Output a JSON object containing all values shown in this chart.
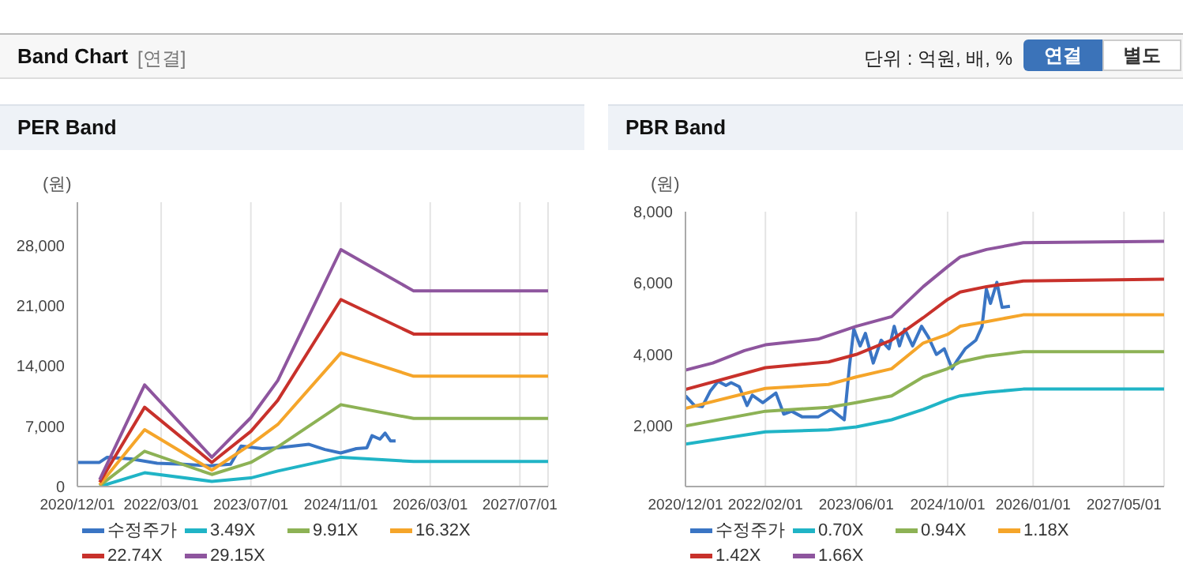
{
  "chart_data": [
    {
      "type": "line",
      "title": "PER Band",
      "ylabel": "(원)",
      "annotations": [
        "Band Chart",
        "[연결]",
        "단위 : 억원, 배, %",
        "연결",
        "별도"
      ],
      "xlim": [
        "2020-12-01",
        "2027-12-01"
      ],
      "xticks": [
        {
          "value": "2020-12-01",
          "label": "2020/12/01"
        },
        {
          "value": "2022-03-01",
          "label": "2022/03/01"
        },
        {
          "value": "2023-07-01",
          "label": "2023/07/01"
        },
        {
          "value": "2024-11-01",
          "label": "2024/11/01"
        },
        {
          "value": "2026-03-01",
          "label": "2026/03/01"
        },
        {
          "value": "2027-07-01",
          "label": "2027/07/01"
        }
      ],
      "ylim": [
        0,
        33000
      ],
      "yticks": [
        {
          "value": 0,
          "label": "0"
        },
        {
          "value": 7000,
          "label": "7,000"
        },
        {
          "value": 14000,
          "label": "14,000"
        },
        {
          "value": 21000,
          "label": "21,000"
        },
        {
          "value": 28000,
          "label": "28,000"
        }
      ],
      "grid": "x",
      "legend": "bottom",
      "marker": "none",
      "series": [
        {
          "name": "수정주가",
          "color": "#3a75c4",
          "x": [
            "2020-12-01",
            "2021-03-31",
            "2021-05-12",
            "2021-09-18",
            "2022-02-07",
            "2022-06-29",
            "2022-11-19",
            "2023-03-13",
            "2023-05-09",
            "2023-08-31",
            "2023-11-24",
            "2024-02-17",
            "2024-05-12",
            "2024-08-06",
            "2024-10-31",
            "2025-01-24",
            "2025-03-22",
            "2025-04-19",
            "2025-06-01",
            "2025-06-29",
            "2025-07-28",
            "2025-08-25"
          ],
          "values": [
            2800,
            2800,
            3400,
            3200,
            2700,
            2600,
            2400,
            2600,
            4700,
            4400,
            4500,
            4700,
            4900,
            4300,
            3900,
            4400,
            4500,
            5900,
            5500,
            6200,
            5300,
            5300
          ]
        },
        {
          "name": "3.49X",
          "color": "#20b4c6",
          "x": [
            "2021-04-01",
            "2021-12-01",
            "2022-12-01",
            "2023-07-01",
            "2023-11-24",
            "2024-11-01",
            "2025-12-01",
            "2027-12-01"
          ],
          "values": [
            0,
            1600,
            600,
            1000,
            1800,
            3400,
            2900,
            2900
          ]
        },
        {
          "name": "9.91X",
          "color": "#8db255",
          "x": [
            "2021-04-01",
            "2021-12-01",
            "2022-12-01",
            "2023-07-01",
            "2023-11-24",
            "2024-11-01",
            "2025-12-01",
            "2027-12-01"
          ],
          "values": [
            100,
            4100,
            1400,
            2800,
            4600,
            9500,
            7900,
            7900
          ]
        },
        {
          "name": "16.32X",
          "color": "#f5a52a",
          "x": [
            "2021-04-01",
            "2021-12-01",
            "2022-12-01",
            "2023-07-01",
            "2023-11-24",
            "2024-11-01",
            "2025-12-01",
            "2027-12-01"
          ],
          "values": [
            200,
            6600,
            1900,
            4900,
            7200,
            15500,
            12800,
            12800
          ]
        },
        {
          "name": "22.74X",
          "color": "#c8312b",
          "x": [
            "2021-04-01",
            "2021-12-01",
            "2022-12-01",
            "2023-07-01",
            "2023-11-24",
            "2024-11-01",
            "2025-12-01",
            "2027-12-01"
          ],
          "values": [
            500,
            9200,
            2800,
            6400,
            10000,
            21700,
            17700,
            17700
          ]
        },
        {
          "name": "29.15X",
          "color": "#8e559e",
          "x": [
            "2021-04-01",
            "2021-12-01",
            "2022-12-01",
            "2023-07-01",
            "2023-11-24",
            "2024-11-01",
            "2025-12-01",
            "2027-12-01"
          ],
          "values": [
            800,
            11800,
            3400,
            8000,
            12300,
            27500,
            22700,
            22700
          ]
        }
      ]
    },
    {
      "type": "line",
      "title": "PBR Band",
      "ylabel": "(원)",
      "xlim": [
        "2020-12-01",
        "2027-12-01"
      ],
      "xticks": [
        {
          "value": "2020-12-01",
          "label": "2020/12/01"
        },
        {
          "value": "2022-02-01",
          "label": "2022/02/01"
        },
        {
          "value": "2023-06-01",
          "label": "2023/06/01"
        },
        {
          "value": "2024-10-01",
          "label": "2024/10/01"
        },
        {
          "value": "2026-01-01",
          "label": "2026/01/01"
        },
        {
          "value": "2027-05-01",
          "label": "2027/05/01"
        }
      ],
      "ylim": [
        300,
        8000
      ],
      "yticks": [
        {
          "value": 2000,
          "label": "2,000"
        },
        {
          "value": 4000,
          "label": "4,000"
        },
        {
          "value": 6000,
          "label": "6,000"
        },
        {
          "value": 8000,
          "label": "8,000"
        }
      ],
      "grid": "x",
      "legend": "bottom",
      "marker": "none",
      "series": [
        {
          "name": "수정주가",
          "color": "#3a75c4",
          "x": [
            "2020-12-01",
            "2021-01-18",
            "2021-03-01",
            "2021-04-12",
            "2021-05-24",
            "2021-07-05",
            "2021-08-02",
            "2021-09-14",
            "2021-10-26",
            "2021-11-23",
            "2022-01-18",
            "2022-03-29",
            "2022-05-10",
            "2022-06-21",
            "2022-08-17",
            "2022-11-09",
            "2023-01-18",
            "2023-03-29",
            "2023-04-26",
            "2023-05-19",
            "2023-06-22",
            "2023-07-20",
            "2023-08-31",
            "2023-10-12",
            "2023-11-23",
            "2023-12-21",
            "2024-01-18",
            "2024-02-15",
            "2024-03-28",
            "2024-05-15",
            "2024-06-21",
            "2024-08-02",
            "2024-09-13",
            "2024-10-25",
            "2024-11-22",
            "2025-01-03",
            "2025-03-01",
            "2025-04-03",
            "2025-04-26",
            "2025-05-18",
            "2025-06-21",
            "2025-07-19",
            "2025-08-30"
          ],
          "values": [
            2840,
            2570,
            2540,
            2970,
            3250,
            3130,
            3210,
            3100,
            2570,
            2860,
            2650,
            2920,
            2330,
            2410,
            2250,
            2250,
            2460,
            2170,
            3680,
            4710,
            4240,
            4590,
            3760,
            4400,
            4160,
            4790,
            4240,
            4710,
            4240,
            4790,
            4480,
            4000,
            4160,
            3600,
            3840,
            4160,
            4400,
            4790,
            5830,
            5430,
            6020,
            5320,
            5350
          ]
        },
        {
          "name": "0.70X",
          "color": "#20b4c6",
          "x": [
            "2020-12-01",
            "2022-02-01",
            "2023-01-04",
            "2023-06-01",
            "2023-12-07",
            "2024-05-24",
            "2024-10-01",
            "2024-12-07",
            "2025-04-27",
            "2025-11-09",
            "2027-12-01"
          ],
          "values": [
            1490,
            1830,
            1890,
            1970,
            2170,
            2460,
            2730,
            2840,
            2940,
            3030,
            3030
          ]
        },
        {
          "name": "0.94X",
          "color": "#8db255",
          "x": [
            "2020-12-01",
            "2022-02-01",
            "2023-01-04",
            "2023-06-01",
            "2023-12-07",
            "2024-05-24",
            "2024-10-01",
            "2024-12-07",
            "2025-04-27",
            "2025-11-09",
            "2027-12-01"
          ],
          "values": [
            2000,
            2410,
            2520,
            2650,
            2840,
            3370,
            3600,
            3790,
            3950,
            4080,
            4080
          ]
        },
        {
          "name": "1.18X",
          "color": "#f5a52a",
          "x": [
            "2020-12-01",
            "2022-02-01",
            "2023-01-04",
            "2023-06-01",
            "2023-12-07",
            "2024-05-24",
            "2024-10-01",
            "2024-12-07",
            "2025-04-27",
            "2025-11-09",
            "2027-12-01"
          ],
          "values": [
            2490,
            3050,
            3160,
            3370,
            3600,
            4320,
            4560,
            4790,
            4920,
            5110,
            5110
          ]
        },
        {
          "name": "1.42X",
          "color": "#c8312b",
          "x": [
            "2020-12-01",
            "2022-02-01",
            "2023-01-04",
            "2023-06-01",
            "2023-12-07",
            "2024-05-24",
            "2024-10-01",
            "2024-12-07",
            "2025-04-27",
            "2025-11-09",
            "2027-12-01"
          ],
          "values": [
            3020,
            3630,
            3790,
            4000,
            4400,
            5030,
            5540,
            5750,
            5900,
            6060,
            6110
          ]
        },
        {
          "name": "1.66X",
          "color": "#8e559e",
          "x": [
            "2020-12-01",
            "2021-04-26",
            "2021-10-12",
            "2022-02-01",
            "2022-11-09",
            "2023-06-01",
            "2023-12-07",
            "2024-05-24",
            "2024-10-01",
            "2024-12-07",
            "2025-04-27",
            "2025-11-09",
            "2027-12-01"
          ],
          "values": [
            3560,
            3760,
            4110,
            4270,
            4430,
            4790,
            5060,
            5900,
            6460,
            6730,
            6940,
            7130,
            7170
          ]
        }
      ]
    }
  ]
}
